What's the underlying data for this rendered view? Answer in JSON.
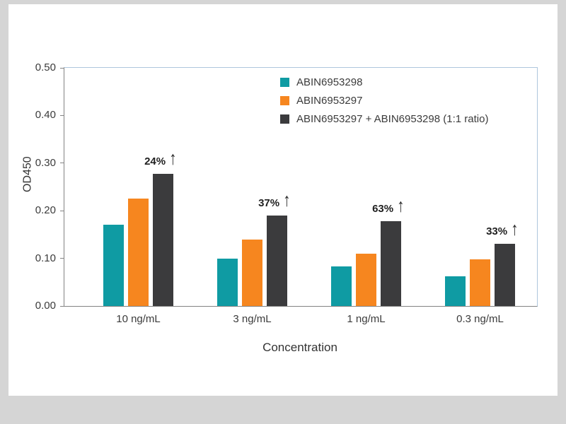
{
  "chart_data": {
    "type": "bar",
    "title": "",
    "xlabel": "Concentration",
    "ylabel": "OD450",
    "ylim": [
      0,
      0.5
    ],
    "ytick_step": 0.1,
    "grid": false,
    "legend_position": "top-center-inside",
    "categories": [
      "10 ng/mL",
      "3 ng/mL",
      "1 ng/mL",
      "0.3 ng/mL"
    ],
    "series": [
      {
        "name": "ABIN6953298",
        "color": "#0f9ba3",
        "values": [
          0.17,
          0.1,
          0.083,
          0.063
        ]
      },
      {
        "name": "ABIN6953297",
        "color": "#f6861f",
        "values": [
          0.225,
          0.14,
          0.11,
          0.098
        ]
      },
      {
        "name": "ABIN6953297 + ABIN6953298 (1:1 ratio)",
        "color": "#3b3b3d",
        "values": [
          0.278,
          0.19,
          0.178,
          0.13
        ]
      }
    ],
    "increase_labels": [
      "24%",
      "37%",
      "63%",
      "33%"
    ],
    "arrow_glyph": "↑"
  }
}
